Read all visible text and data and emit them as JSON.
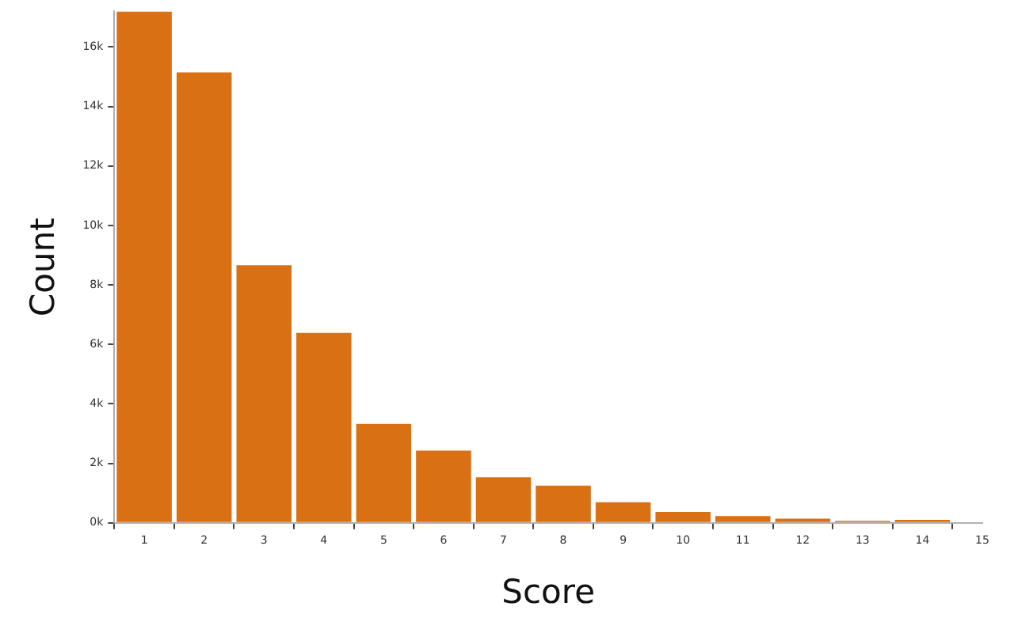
{
  "chart_data": {
    "type": "histogram",
    "xlabel": "Score",
    "ylabel": "Count",
    "color": "#d97014",
    "bins": [
      0.5,
      1.5,
      2.5,
      3.5,
      4.5,
      5.5,
      6.5,
      7.5,
      8.5,
      9.5,
      10.5,
      11.5,
      12.5,
      13.5,
      14.5
    ],
    "values": [
      17200,
      15150,
      8660,
      6390,
      3330,
      2430,
      1530,
      1250,
      690,
      370,
      230,
      140,
      70,
      100
    ],
    "xlim": [
      0.5,
      15
    ],
    "ylim": [
      0,
      17200
    ],
    "xticks": [
      1,
      2,
      3,
      4,
      5,
      6,
      7,
      8,
      9,
      10,
      11,
      12,
      13,
      14,
      15
    ],
    "yticks": [
      {
        "value": 0,
        "label": "0k"
      },
      {
        "value": 2000,
        "label": "2k"
      },
      {
        "value": 4000,
        "label": "4k"
      },
      {
        "value": 6000,
        "label": "6k"
      },
      {
        "value": 8000,
        "label": "8k"
      },
      {
        "value": 10000,
        "label": "10k"
      },
      {
        "value": 12000,
        "label": "12k"
      },
      {
        "value": 14000,
        "label": "14k"
      },
      {
        "value": 16000,
        "label": "16k"
      }
    ],
    "grid": false,
    "legend": false
  }
}
